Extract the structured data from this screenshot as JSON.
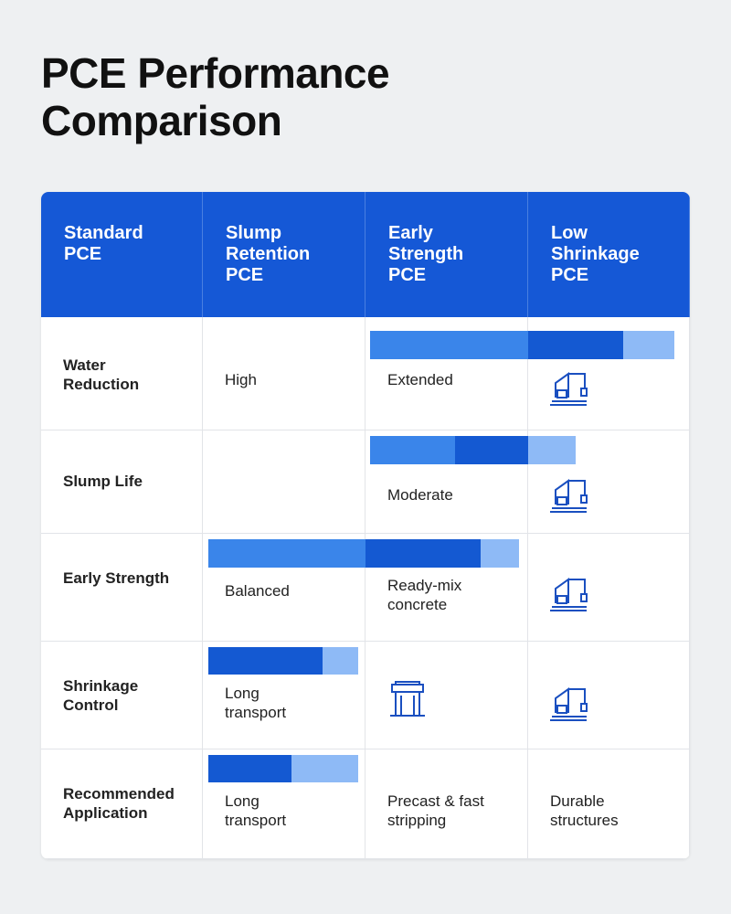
{
  "header": {
    "title": "PCE Performance Comparison"
  },
  "table": {
    "columns": [
      "Standard PCE",
      "Slump Retention PCE",
      "Early Strength PCE",
      "Low Shrinkage PCE"
    ],
    "rows": [
      [
        "Water Reduction",
        "High",
        "Extended",
        null
      ],
      [
        "Slump Life",
        null,
        "Moderate",
        null
      ],
      [
        "Early Strength",
        "Balanced",
        "Ready-mix concrete",
        null
      ],
      [
        "Shrinkage Control",
        "Long transport",
        null,
        null
      ],
      [
        "Recommended Application",
        "Long transport",
        "Precast & fast stripping",
        "Durable structures"
      ]
    ]
  }
}
